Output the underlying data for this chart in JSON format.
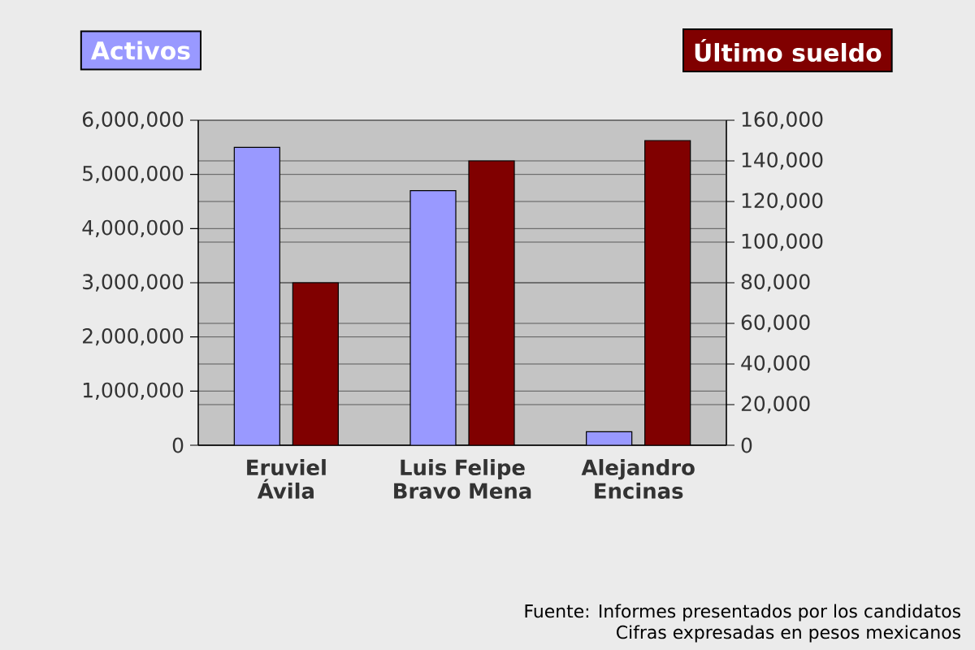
{
  "chart_data": {
    "type": "bar",
    "categories": [
      "Eruviel Ávila",
      "Luis Felipe Bravo Mena",
      "Alejandro Encinas"
    ],
    "series": [
      {
        "name": "Activos",
        "color": "#9999ff",
        "values": [
          5500000,
          4700000,
          250000
        ]
      },
      {
        "name": "Último sueldo",
        "color": "#800000",
        "axis": "y2",
        "values": [
          80000,
          140000,
          150000
        ]
      }
    ],
    "ylim": [
      0,
      6000000
    ],
    "yticks": [
      0,
      {
        "value": 1000000,
        "label": "1,000,000"
      },
      {
        "value": 2000000,
        "label": "2,000,000"
      },
      {
        "value": 3000000,
        "label": "3,000,000"
      },
      {
        "value": 4000000,
        "label": "4,000,000"
      },
      {
        "value": 5000000,
        "label": "5,000,000"
      },
      {
        "value": 6000000,
        "label": "6,000,000"
      }
    ],
    "y2lim": [
      0,
      160000
    ],
    "y2ticks": [
      0,
      {
        "value": 20000,
        "label": "20,000"
      },
      {
        "value": 40000,
        "label": "40,000"
      },
      {
        "value": 60000,
        "label": "60,000"
      },
      {
        "value": 80000,
        "label": "80,000"
      },
      {
        "value": 100000,
        "label": "100,000"
      },
      {
        "value": 120000,
        "label": "120,000"
      },
      {
        "value": 140000,
        "label": "140,000"
      },
      {
        "value": 160000,
        "label": "160,000"
      }
    ],
    "grid": "y",
    "legend": "top",
    "annotations": [
      "Fuente: Informes presentados por los candidatos",
      "Cifras expresadas en pesos mexicanos"
    ]
  }
}
